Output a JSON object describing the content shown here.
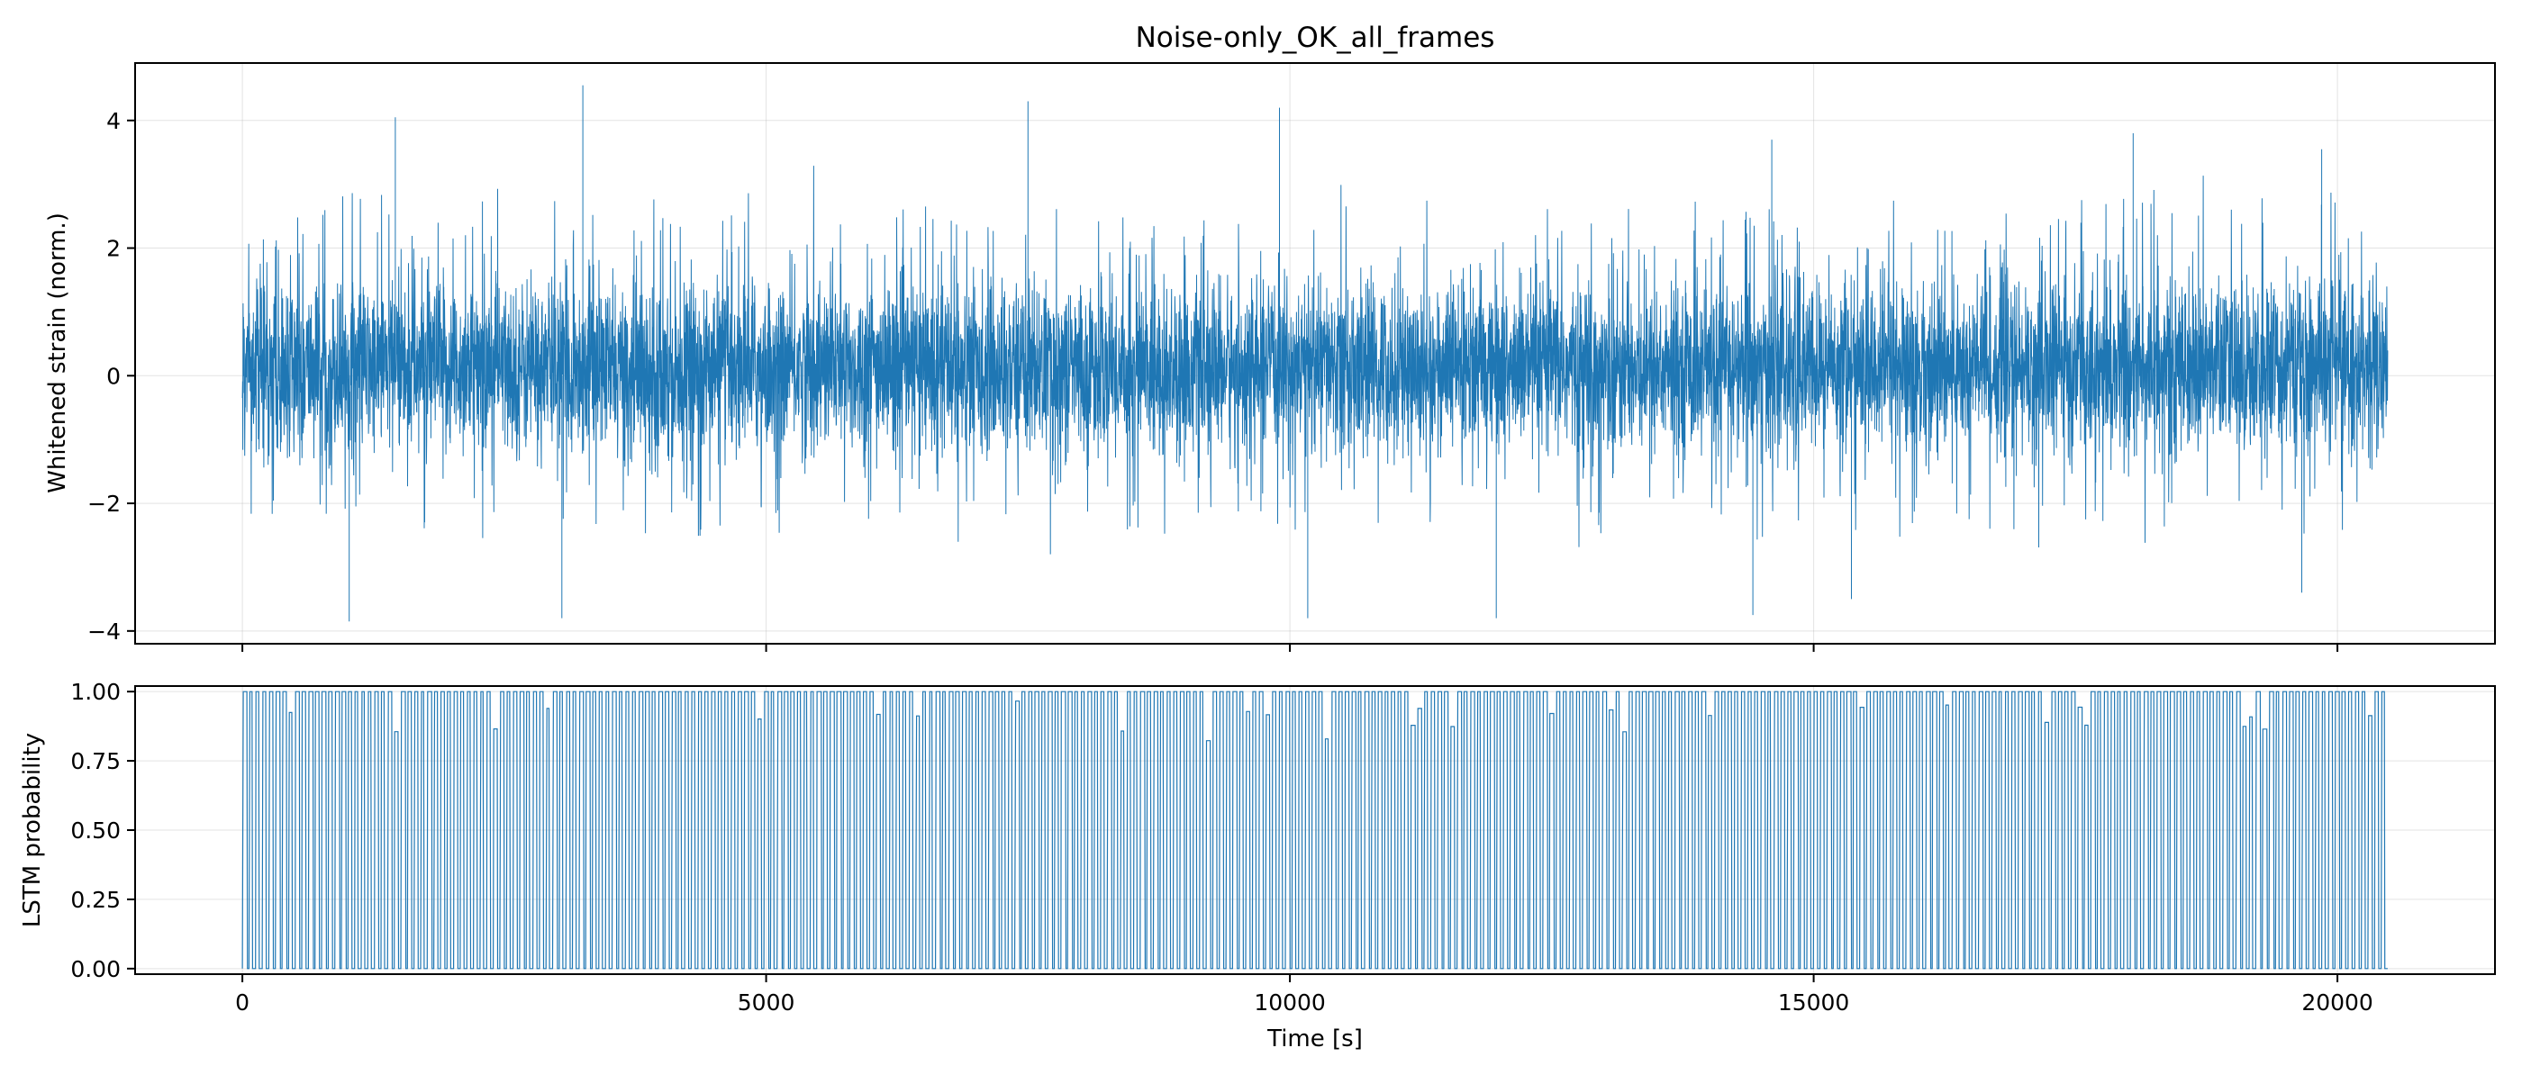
{
  "figure": {
    "title": "Noise-only_OK_all_frames",
    "line_color": "#1f77b4"
  },
  "chart_data": [
    {
      "type": "line",
      "panel": "top",
      "title": "Noise-only_OK_all_frames",
      "xlabel": "",
      "ylabel": "Whitened strain (norm.)",
      "xlim": [
        -1024,
        21504
      ],
      "ylim": [
        -4.2,
        4.9
      ],
      "x_range": [
        0,
        20480
      ],
      "x_ticks": [
        0,
        5000,
        10000,
        15000,
        20000
      ],
      "x_tick_labels": [
        "",
        "",
        "",
        "",
        ""
      ],
      "y_ticks": [
        -4,
        -2,
        0,
        2,
        4
      ],
      "y_tick_labels": [
        "−4",
        "−2",
        "0",
        "2",
        "4"
      ],
      "grid": true,
      "signal": "gaussian-noise",
      "std": 0.65,
      "envelope_typical": [
        -2.0,
        2.3
      ],
      "peaks": [
        {
          "x": 1460,
          "y": 4.05
        },
        {
          "x": 3250,
          "y": 4.55
        },
        {
          "x": 7500,
          "y": 4.3
        },
        {
          "x": 9900,
          "y": 4.2
        },
        {
          "x": 14600,
          "y": 3.7
        },
        {
          "x": 18050,
          "y": 3.8
        },
        {
          "x": 19850,
          "y": 3.55
        }
      ],
      "troughs": [
        {
          "x": 1020,
          "y": -3.85
        },
        {
          "x": 3050,
          "y": -3.8
        },
        {
          "x": 10170,
          "y": -3.8
        },
        {
          "x": 11970,
          "y": -3.8
        },
        {
          "x": 14420,
          "y": -3.75
        },
        {
          "x": 15360,
          "y": -3.5
        },
        {
          "x": 19660,
          "y": -3.4
        }
      ]
    },
    {
      "type": "line",
      "panel": "bottom",
      "title": "",
      "xlabel": "Time [s]",
      "ylabel": "LSTM probability",
      "xlim": [
        -1024,
        21504
      ],
      "ylim": [
        -0.02,
        1.02
      ],
      "x_range": [
        0,
        20480
      ],
      "x_ticks": [
        0,
        5000,
        10000,
        15000,
        20000
      ],
      "x_tick_labels": [
        "0",
        "5000",
        "10000",
        "15000",
        "20000"
      ],
      "y_ticks": [
        0.0,
        0.25,
        0.5,
        0.75,
        1.0
      ],
      "y_tick_labels": [
        "0.00",
        "0.25",
        "0.50",
        "0.75",
        "1.00"
      ],
      "grid": true,
      "signal": "square-oscillation",
      "levels": [
        0.0,
        1.0
      ],
      "approx_cycles": 325
    }
  ]
}
